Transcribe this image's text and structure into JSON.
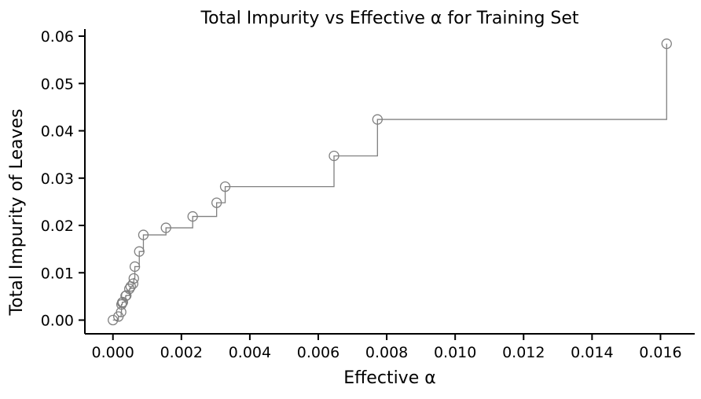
{
  "chart_data": {
    "type": "line",
    "title": "Total Impurity vs Effective α for Training Set",
    "xlabel": "Effective α",
    "ylabel": "Total Impurity of Leaves",
    "drawstyle": "steps-post",
    "marker": "open-circle",
    "xlim": [
      -0.00082,
      0.017
    ],
    "ylim": [
      -0.0029,
      0.0615
    ],
    "xticks": [
      0.0,
      0.002,
      0.004,
      0.006,
      0.008,
      0.01,
      0.012,
      0.014,
      0.016
    ],
    "xtick_labels": [
      "0.000",
      "0.002",
      "0.004",
      "0.006",
      "0.008",
      "0.010",
      "0.012",
      "0.014",
      "0.016"
    ],
    "yticks": [
      0.0,
      0.01,
      0.02,
      0.03,
      0.04,
      0.05,
      0.06
    ],
    "ytick_labels": [
      "0.00",
      "0.01",
      "0.02",
      "0.03",
      "0.04",
      "0.05",
      "0.06"
    ],
    "grid": false,
    "spines": "left-bottom",
    "colors": {
      "series": "#808080",
      "axis": "#000000"
    },
    "x": [
      0.0,
      0.00016,
      0.00024,
      0.00025,
      0.00027,
      0.00029,
      0.00037,
      0.00039,
      0.00048,
      0.00052,
      0.00059,
      0.00061,
      0.00064,
      0.00077,
      0.00089,
      0.00155,
      0.00233,
      0.00303,
      0.00328,
      0.00646,
      0.00773,
      0.01618
    ],
    "y": [
      0.0,
      0.00075,
      0.0017,
      0.0033,
      0.0037,
      0.0038,
      0.0051,
      0.0052,
      0.0066,
      0.0071,
      0.0077,
      0.0088,
      0.0113,
      0.0145,
      0.018,
      0.0195,
      0.0219,
      0.0248,
      0.0282,
      0.0347,
      0.0424,
      0.0584
    ]
  }
}
